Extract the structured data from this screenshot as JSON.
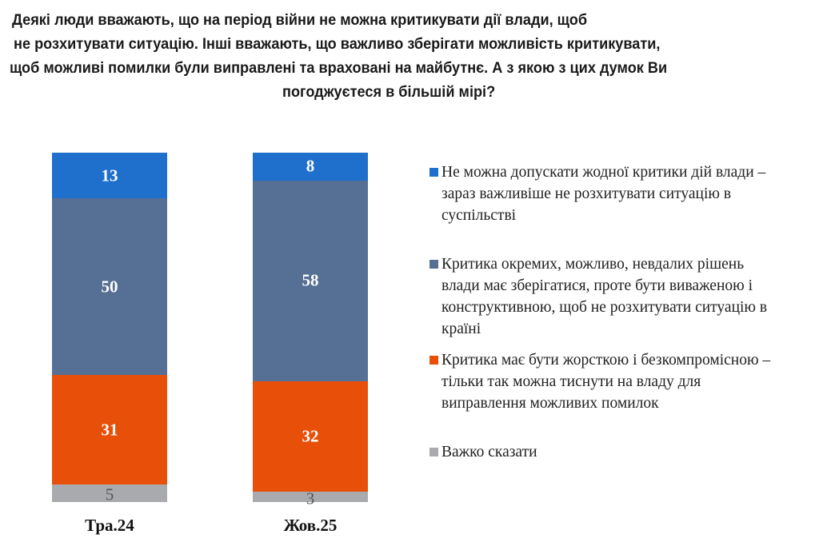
{
  "chart_data": {
    "type": "bar",
    "stacked": true,
    "title_lines": [
      "Деякі люди вважають, що на період війни не можна критикувати дії влади, щоб",
      "не розхитувати ситуацію. Інші вважають, що важливо зберігати можливість критикувати,",
      "щоб можливі помилки були виправлені та враховані на майбутнє. А з якою з цих думок Ви",
      "погоджуєтеся в більшій мірі?"
    ],
    "categories": [
      "Тра.24",
      "Жов.25"
    ],
    "series": [
      {
        "name": "Не можна допускати жодної критики дій влади – зараз важливіше не розхитувати ситуацію в суспільстві",
        "color": "#1f6fcc",
        "values": [
          13,
          8
        ]
      },
      {
        "name": "Критика окремих, можливо, невдалих рішень влади має зберігатися, проте бути виваженою і конструктивною, щоб не розхитувати ситуацію в країні",
        "color": "#566f94",
        "values": [
          50,
          58
        ]
      },
      {
        "name": "Критика має бути жорсткою і безкомпромісною – тільки так можна тиснути на владу для виправлення можливих помилок",
        "color": "#e8500a",
        "values": [
          31,
          32
        ]
      },
      {
        "name": "Важко сказати",
        "color": "#a8aaad",
        "values": [
          5,
          3
        ]
      }
    ],
    "legend_position": "right",
    "grid": false,
    "unit": "%"
  }
}
